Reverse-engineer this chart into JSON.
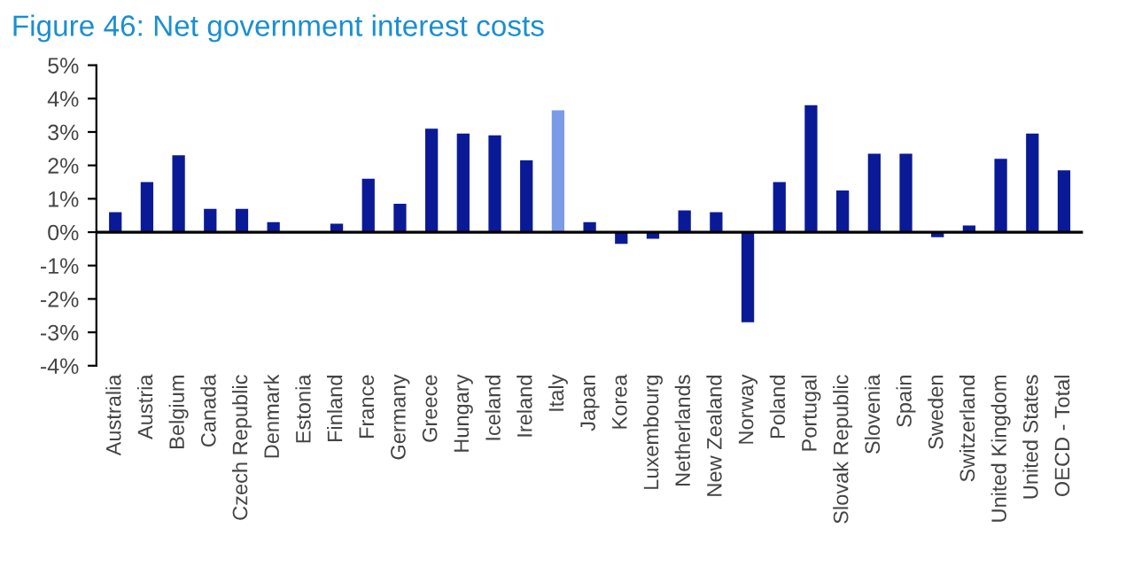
{
  "chart_data": {
    "type": "bar",
    "title": "Figure 46: Net government interest costs",
    "categories": [
      "Australia",
      "Austria",
      "Belgium",
      "Canada",
      "Czech Republic",
      "Denmark",
      "Estonia",
      "Finland",
      "France",
      "Germany",
      "Greece",
      "Hungary",
      "Iceland",
      "Ireland",
      "Italy",
      "Japan",
      "Korea",
      "Luxembourg",
      "Netherlands",
      "New Zealand",
      "Norway",
      "Poland",
      "Portugal",
      "Slovak Republic",
      "Slovenia",
      "Spain",
      "Sweden",
      "Switzerland",
      "United Kingdom",
      "United States",
      "OECD - Total"
    ],
    "values": [
      0.6,
      1.5,
      2.3,
      0.7,
      0.7,
      0.3,
      0,
      0.25,
      1.6,
      0.85,
      3.1,
      2.95,
      2.9,
      2.15,
      3.65,
      0.3,
      -0.35,
      -0.2,
      0.65,
      0.6,
      -2.7,
      1.5,
      3.8,
      1.25,
      2.35,
      2.35,
      -0.15,
      0.2,
      2.2,
      2.95,
      1.85
    ],
    "colors": [
      "#0a1a96",
      "#0a1a96",
      "#0a1a96",
      "#0a1a96",
      "#0a1a96",
      "#0a1a96",
      "#0a1a96",
      "#0a1a96",
      "#0a1a96",
      "#0a1a96",
      "#0a1a96",
      "#0a1a96",
      "#0a1a96",
      "#0a1a96",
      "#7b9be6",
      "#0a1a96",
      "#0a1a96",
      "#0a1a96",
      "#0a1a96",
      "#0a1a96",
      "#0a1a96",
      "#0a1a96",
      "#0a1a96",
      "#0a1a96",
      "#0a1a96",
      "#0a1a96",
      "#0a1a96",
      "#0a1a96",
      "#0a1a96",
      "#0a1a96",
      "#0a1a96"
    ],
    "ylim": [
      -4,
      5
    ],
    "yticks": [
      {
        "value": -4,
        "label": "-4%"
      },
      {
        "value": -3,
        "label": "-3%"
      },
      {
        "value": -2,
        "label": "-2%"
      },
      {
        "value": -1,
        "label": "-1%"
      },
      {
        "value": 0,
        "label": "0%"
      },
      {
        "value": 1,
        "label": "1%"
      },
      {
        "value": 2,
        "label": "2%"
      },
      {
        "value": 3,
        "label": "3%"
      },
      {
        "value": 4,
        "label": "4%"
      },
      {
        "value": 5,
        "label": "5%"
      }
    ]
  }
}
